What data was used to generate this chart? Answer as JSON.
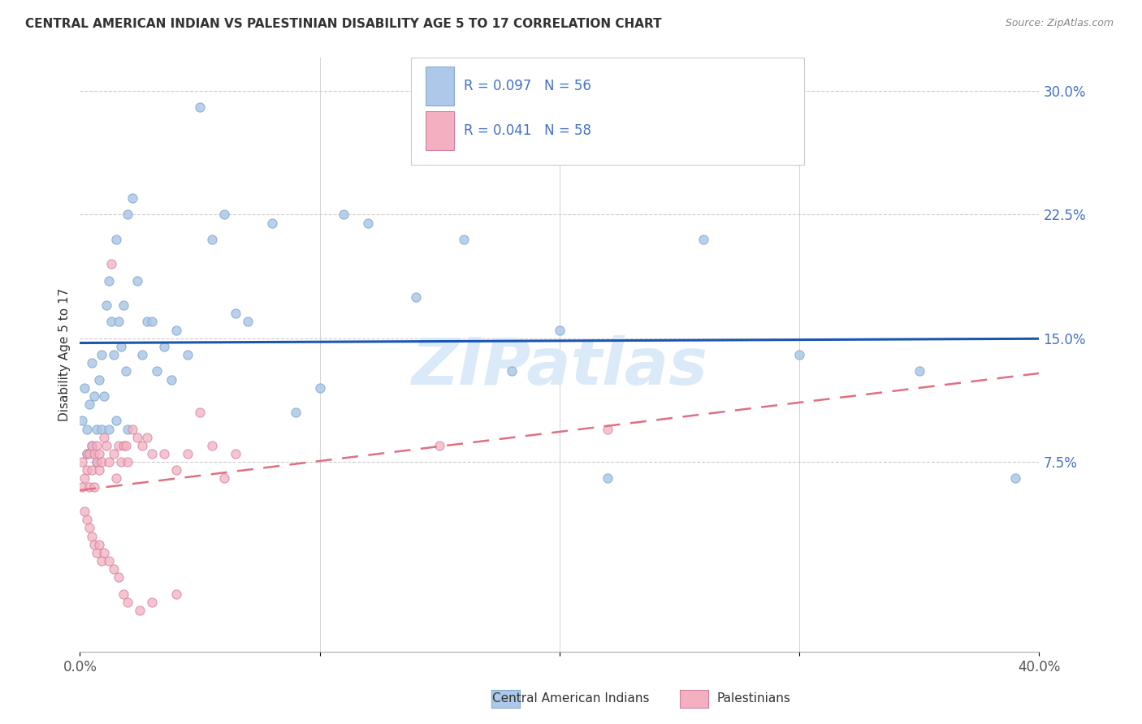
{
  "title": "CENTRAL AMERICAN INDIAN VS PALESTINIAN DISABILITY AGE 5 TO 17 CORRELATION CHART",
  "source": "Source: ZipAtlas.com",
  "ylabel": "Disability Age 5 to 17",
  "xlim": [
    0.0,
    0.4
  ],
  "ylim": [
    -0.04,
    0.32
  ],
  "right_y_ticks": [
    0.075,
    0.15,
    0.225,
    0.3
  ],
  "right_y_tick_labels": [
    "7.5%",
    "15.0%",
    "22.5%",
    "30.0%"
  ],
  "blue_scatter_color": "#adc8e8",
  "pink_scatter_color": "#f4b0c0",
  "blue_line_color": "#1a56b0",
  "pink_line_color": "#e07080",
  "grid_color": "#cccccc",
  "watermark_text": "ZIPatlas",
  "watermark_color": "#daeaf8",
  "blue_label": "Central American Indians",
  "pink_label": "Palestinians",
  "blue_R": "0.097",
  "blue_N": "56",
  "pink_R": "0.041",
  "pink_N": "58",
  "legend_text_color": "#4472c4",
  "title_color": "#333333",
  "source_color": "#888888",
  "axis_text_color": "#4472c4",
  "blue_x": [
    0.001,
    0.002,
    0.003,
    0.004,
    0.005,
    0.006,
    0.007,
    0.008,
    0.009,
    0.01,
    0.011,
    0.012,
    0.013,
    0.014,
    0.015,
    0.016,
    0.017,
    0.018,
    0.019,
    0.02,
    0.022,
    0.024,
    0.026,
    0.028,
    0.03,
    0.032,
    0.035,
    0.038,
    0.04,
    0.045,
    0.05,
    0.055,
    0.06,
    0.065,
    0.07,
    0.08,
    0.09,
    0.1,
    0.11,
    0.12,
    0.14,
    0.16,
    0.18,
    0.2,
    0.22,
    0.26,
    0.3,
    0.35,
    0.39,
    0.003,
    0.005,
    0.007,
    0.009,
    0.012,
    0.015,
    0.02
  ],
  "blue_y": [
    0.1,
    0.12,
    0.095,
    0.11,
    0.135,
    0.115,
    0.095,
    0.125,
    0.14,
    0.115,
    0.17,
    0.185,
    0.16,
    0.14,
    0.21,
    0.16,
    0.145,
    0.17,
    0.13,
    0.225,
    0.235,
    0.185,
    0.14,
    0.16,
    0.16,
    0.13,
    0.145,
    0.125,
    0.155,
    0.14,
    0.29,
    0.21,
    0.225,
    0.165,
    0.16,
    0.22,
    0.105,
    0.12,
    0.225,
    0.22,
    0.175,
    0.21,
    0.13,
    0.155,
    0.065,
    0.21,
    0.14,
    0.13,
    0.065,
    0.08,
    0.085,
    0.075,
    0.095,
    0.095,
    0.1,
    0.095
  ],
  "pink_x": [
    0.001,
    0.001,
    0.002,
    0.002,
    0.003,
    0.003,
    0.004,
    0.004,
    0.005,
    0.005,
    0.006,
    0.006,
    0.007,
    0.007,
    0.008,
    0.008,
    0.009,
    0.01,
    0.011,
    0.012,
    0.013,
    0.014,
    0.015,
    0.016,
    0.017,
    0.018,
    0.019,
    0.02,
    0.022,
    0.024,
    0.026,
    0.028,
    0.03,
    0.035,
    0.04,
    0.045,
    0.05,
    0.055,
    0.06,
    0.065,
    0.003,
    0.004,
    0.005,
    0.006,
    0.007,
    0.008,
    0.009,
    0.01,
    0.012,
    0.014,
    0.016,
    0.018,
    0.02,
    0.025,
    0.03,
    0.04,
    0.15,
    0.22
  ],
  "pink_y": [
    0.06,
    0.075,
    0.065,
    0.045,
    0.07,
    0.08,
    0.08,
    0.06,
    0.07,
    0.085,
    0.06,
    0.08,
    0.075,
    0.085,
    0.07,
    0.08,
    0.075,
    0.09,
    0.085,
    0.075,
    0.195,
    0.08,
    0.065,
    0.085,
    0.075,
    0.085,
    0.085,
    0.075,
    0.095,
    0.09,
    0.085,
    0.09,
    0.08,
    0.08,
    0.07,
    0.08,
    0.105,
    0.085,
    0.065,
    0.08,
    0.04,
    0.035,
    0.03,
    0.025,
    0.02,
    0.025,
    0.015,
    0.02,
    0.015,
    0.01,
    0.005,
    -0.005,
    -0.01,
    -0.015,
    -0.01,
    -0.005,
    0.085,
    0.095
  ]
}
